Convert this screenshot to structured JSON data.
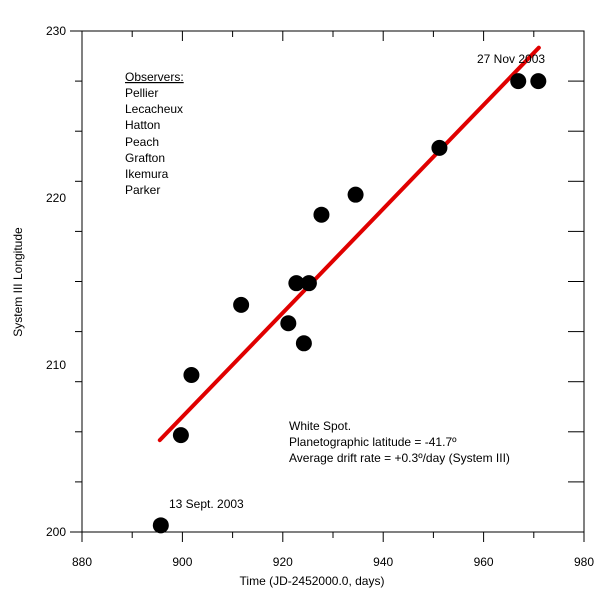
{
  "chart_data": {
    "type": "scatter",
    "xlabel": "Time (JD-2452000.0, days)",
    "ylabel": "System III Longitude",
    "xlim": [
      880,
      980
    ],
    "ylim": [
      200,
      230
    ],
    "x_ticks": [
      "880",
      "900",
      "920",
      "940",
      "960",
      "980"
    ],
    "y_ticks": [
      "200",
      "210",
      "220",
      "230"
    ],
    "x_minor_step": 10,
    "y_minor_step": 3,
    "grid": false,
    "series": [
      {
        "marker_color": "#000000",
        "x": [
          895.7,
          899.7,
          901.8,
          911.7,
          921.1,
          922.7,
          924.2,
          925.2,
          927.7,
          934.5,
          951.2,
          966.9,
          970.9
        ],
        "y": [
          200.4,
          205.8,
          209.4,
          213.6,
          212.5,
          214.9,
          211.3,
          214.9,
          219.0,
          220.2,
          223.0,
          227.0,
          227.0
        ]
      }
    ],
    "fit_line": {
      "color": "#e00000",
      "x": [
        895.5,
        971.0
      ],
      "y": [
        205.5,
        229.0
      ]
    },
    "observers": {
      "heading": "Observers:",
      "names": [
        "Pellier",
        "Lecacheux",
        "Hatton",
        "Peach",
        "Grafton",
        "Ikemura",
        "Parker"
      ]
    },
    "annotations": {
      "start": "13 Sept. 2003",
      "end": "27 Nov 2003",
      "info": [
        "White Spot.",
        "Planetographic latitude = -41.7º",
        "Average drift rate = +0.3º/day (System III)"
      ]
    }
  }
}
